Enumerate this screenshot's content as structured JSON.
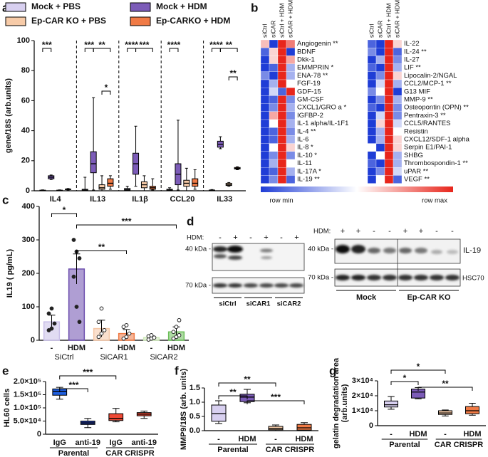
{
  "chart_data": [
    {
      "label": "a",
      "type": "box",
      "ylabel": "gene/18S (arb.units)",
      "categories": [
        "IL4",
        "IL13",
        "IL1β",
        "CCL20",
        "IL33"
      ],
      "ylim": [
        0,
        100
      ],
      "yticks": [
        0,
        20,
        40,
        60,
        80,
        100
      ],
      "series": [
        {
          "name": "Mock + PBS",
          "color": "#d8d0f0",
          "values": [
            [
              0,
              0,
              0.2,
              0.4,
              0.6
            ],
            [
              0,
              0.2,
              0.5,
              1,
              9
            ],
            [
              0,
              0.3,
              0.8,
              1.5,
              3
            ],
            [
              0,
              0.2,
              0.5,
              1,
              2
            ],
            [
              0,
              0.1,
              0.3,
              0.5,
              0.8
            ]
          ]
        },
        {
          "name": "Mock + HDM",
          "color": "#7c5cb8",
          "values": [
            [
              7.5,
              8,
              9,
              10,
              10.5
            ],
            [
              0.5,
              12,
              18,
              26,
              62
            ],
            [
              3,
              11,
              18,
              25,
              43
            ],
            [
              0.5,
              4,
              11,
              18,
              47
            ],
            [
              28,
              29,
              31,
              33,
              36
            ]
          ]
        },
        {
          "name": "Ep-CAR KO + PBS",
          "color": "#f7cba8",
          "values": [
            [
              0,
              0,
              0.2,
              0.4,
              0.6
            ],
            [
              0,
              1,
              2,
              4,
              10
            ],
            [
              0,
              2,
              4,
              6,
              10
            ],
            [
              0,
              3,
              5,
              7,
              15
            ],
            [
              3,
              3.5,
              4,
              5,
              5.5
            ]
          ]
        },
        {
          "name": "Ep-CARKO + HDM",
          "color": "#f07a45",
          "values": [
            [
              0.5,
              0.8,
              1,
              1.2,
              1.5
            ],
            [
              1,
              3,
              5,
              8,
              10
            ],
            [
              0.5,
              1,
              2,
              3,
              8
            ],
            [
              1,
              3,
              5,
              8,
              14
            ],
            [
              14,
              14.5,
              15,
              15.5,
              16
            ]
          ]
        }
      ],
      "annotations": [
        "***",
        "***",
        "**",
        "*",
        "****",
        "***",
        "****",
        "****",
        "**",
        "**"
      ]
    },
    {
      "label": "b",
      "type": "heatmap",
      "columns": [
        "siCtrl",
        "siCAR",
        "siCtrl + HDM",
        "siCAR + HDM"
      ],
      "blocks": [
        {
          "rows": [
            "Angiogenin **",
            "BDNF",
            "Dkk-1",
            "EMMPRIN *",
            "ENA-78 **",
            "FGF-19",
            "GDF-15",
            "GM-CSF",
            "CXCL1/GRO a *",
            "IGFBP-2",
            "IL-1 alpha/IL-1F1",
            "IL-4 **",
            "IL-6",
            "IL-8 *",
            "IL-10 *",
            "IL-11",
            "IL-17A *",
            "IL-19 **"
          ],
          "values": [
            [
              0.65,
              0,
              1,
              0.8
            ],
            [
              0.1,
              0.6,
              1,
              0
            ],
            [
              0,
              0.6,
              1,
              0.7
            ],
            [
              0,
              0.1,
              1,
              0.3
            ],
            [
              0.2,
              0,
              1,
              0.3
            ],
            [
              0,
              0.3,
              1,
              0.5
            ],
            [
              0,
              0.4,
              0.1,
              1
            ],
            [
              0,
              0.1,
              1,
              0.2
            ],
            [
              0,
              0.2,
              1,
              0.3
            ],
            [
              0,
              0.7,
              1,
              0.2
            ],
            [
              0,
              0.5,
              1,
              0.3
            ],
            [
              0,
              0.1,
              1,
              0.2
            ],
            [
              0,
              0.1,
              1,
              0.3
            ],
            [
              0,
              0.5,
              1,
              0.6
            ],
            [
              0,
              0.2,
              1,
              0.2
            ],
            [
              0,
              0.3,
              1,
              0.5
            ],
            [
              0,
              0.1,
              1,
              0.3
            ],
            [
              0,
              0.2,
              1,
              0.1
            ]
          ]
        },
        {
          "rows": [
            "IL-22",
            "IL-24 **",
            "IL-27",
            "LIF **",
            "Lipocalin-2/NGAL",
            "CCL2/MCP-1 **",
            "G13 MIF",
            "MMP-9 **",
            "Osteopontin (OPN) **",
            "Pentraxin-3 **",
            "CCL5/RANTES",
            "Resistin",
            "CXCL12/SDF-1 alpha",
            "Serpin E1/PAI-1",
            "SHBG",
            "Thrombospondin-1 **",
            "uPAR **",
            "VEGF **"
          ],
          "values": [
            [
              0.1,
              0,
              1,
              0.6
            ],
            [
              0.2,
              0,
              1,
              0.1
            ],
            [
              0,
              0.3,
              1,
              0.2
            ],
            [
              0.1,
              0,
              1,
              0.3
            ],
            [
              0,
              0.2,
              1,
              0.6
            ],
            [
              0,
              0.4,
              1,
              0.3
            ],
            [
              0.2,
              0.5,
              1,
              0
            ],
            [
              0,
              0.2,
              1,
              0.3
            ],
            [
              0.1,
              0,
              1,
              0.2
            ],
            [
              0,
              0.4,
              1,
              0.2
            ],
            [
              0,
              0.6,
              1,
              0.4
            ],
            [
              0,
              0.3,
              1,
              0.5
            ],
            [
              0,
              0.3,
              1,
              0.6
            ],
            [
              0.5,
              0,
              1,
              0.6
            ],
            [
              0,
              0.5,
              1,
              0.3
            ],
            [
              0.1,
              0,
              1,
              0.3
            ],
            [
              0,
              0.2,
              1,
              0.4
            ],
            [
              0,
              0.5,
              1,
              0.1
            ]
          ]
        }
      ],
      "legend": [
        "row min",
        "row max"
      ]
    },
    {
      "label": "c",
      "type": "bar",
      "ylabel": "IL19 ( pg/mL)",
      "categories": [
        "-",
        "HDM",
        "-",
        "HDM",
        "-",
        "HDM"
      ],
      "groups": [
        "SiCtrl",
        "SiCAR1",
        "SiCAR2"
      ],
      "colors": [
        "#c9bfe8",
        "#6d4fae",
        "#f5c6a5",
        "#ef7a45",
        "#cde8b8",
        "#6cbf5a"
      ],
      "values": [
        55,
        213,
        35,
        20,
        8,
        25
      ],
      "errors": [
        20,
        45,
        25,
        12,
        5,
        15
      ],
      "points": [
        [
          30,
          35,
          50,
          80,
          95
        ],
        [
          300,
          265,
          245,
          190,
          100,
          55
        ],
        [
          10,
          20,
          30,
          55,
          95
        ],
        [
          5,
          10,
          20,
          40,
          45
        ],
        [
          2,
          5,
          8,
          12,
          15
        ],
        [
          5,
          10,
          15,
          25,
          40,
          60
        ]
      ],
      "ylim": [
        0,
        400
      ],
      "yticks": [
        0,
        100,
        200,
        300,
        400
      ],
      "annotations": [
        "*",
        "***",
        "**"
      ]
    },
    {
      "label": "e",
      "type": "box",
      "ylabel": "HL60 cells",
      "categories": [
        "IgG",
        "anti-19",
        "IgG",
        "anti-19"
      ],
      "groups": [
        "Parental",
        "CAR CRISPR"
      ],
      "colors": [
        "#2060e0",
        "#203a9a",
        "#f04a35",
        "#f04a35"
      ],
      "hatch": [
        false,
        true,
        false,
        true
      ],
      "values": [
        [
          133000,
          148000,
          163000,
          172000,
          178000
        ],
        [
          25000,
          37000,
          43000,
          50000,
          60000
        ],
        [
          47000,
          52000,
          60000,
          78000,
          98000
        ],
        [
          60000,
          70000,
          76000,
          82000,
          88000
        ]
      ],
      "ylim": [
        0,
        200000
      ],
      "yticks": [
        0,
        {
          "value": 50000,
          "label": "5.0×10⁴"
        },
        {
          "value": 100000,
          "label": "1.0×10⁵"
        },
        {
          "value": 150000,
          "label": "1.5×10⁵"
        },
        {
          "value": 200000,
          "label": "2.0×10⁵"
        }
      ],
      "annotations": [
        "***",
        "***"
      ]
    },
    {
      "label": "f",
      "type": "box",
      "ylabel": "MMP9/18S (arb. units)",
      "categories": [
        "-",
        "HDM",
        "-",
        "HDM"
      ],
      "groups": [
        "Parental",
        "CAR CRISPR"
      ],
      "colors": [
        "#d8d0f0",
        "#7c5cb8",
        "#f7cba8",
        "#f07a45"
      ],
      "hatch": [
        false,
        false,
        false,
        false
      ],
      "values": [
        [
          0.25,
          0.33,
          0.6,
          0.9,
          1.05
        ],
        [
          0.98,
          1.02,
          1.18,
          1.28,
          1.45
        ],
        [
          0,
          0.03,
          0.08,
          0.15,
          0.2
        ],
        [
          0,
          0.02,
          0.1,
          0.22,
          0.28
        ]
      ],
      "ylim": [
        0,
        1.5
      ],
      "yticks": [
        {
          "value": 0,
          "label": "0.0"
        },
        0.5,
        {
          "value": 1,
          "label": "1.0"
        },
        1.5
      ],
      "annotations": [
        "**",
        "**",
        "***"
      ]
    },
    {
      "label": "g",
      "type": "box",
      "ylabel": "gelatin degradation area",
      "ylabel2": "(arb.units)",
      "categories": [
        "-",
        "HDM",
        "-",
        "HDM"
      ],
      "groups": [
        "Parental",
        "CAR CRISPR"
      ],
      "colors": [
        "#d8d0f0",
        "#7c5cb8",
        "#f7cba8",
        "#f07a45"
      ],
      "hatch": [
        false,
        false,
        false,
        false
      ],
      "values": [
        [
          11000,
          12500,
          14000,
          16500,
          19500
        ],
        [
          18000,
          18500,
          22500,
          24500,
          25500
        ],
        [
          6500,
          7500,
          8500,
          10000,
          10500
        ],
        [
          7000,
          8000,
          10000,
          12800,
          15000
        ]
      ],
      "ylim": [
        0,
        30000
      ],
      "yticks": [
        0,
        {
          "value": 10000,
          "label": "1×10⁴"
        },
        {
          "value": 20000,
          "label": "2×10⁴"
        },
        {
          "value": 30000,
          "label": "3×10⁴"
        }
      ],
      "annotations": [
        "*",
        "*",
        "**"
      ]
    }
  ],
  "blot": {
    "label": "d",
    "left": {
      "hdm_label": "HDM:",
      "hdm": [
        "-",
        "+",
        "-",
        "+",
        "-",
        "+"
      ],
      "markers": [
        "40 kDa -",
        "70 kDa -"
      ],
      "groups": [
        "siCtrl",
        "siCAR1",
        "siCAR2"
      ]
    },
    "right": {
      "hdm_label": "HDM:",
      "hdm": [
        "+",
        "+",
        "-",
        "-",
        "+",
        "+",
        "-",
        "-"
      ],
      "markers": [
        "40 kDa -",
        "70 kDa -"
      ],
      "groups": [
        "Mock",
        "Ep-CAR KO"
      ],
      "bands": [
        "IL-19",
        "HSC70"
      ]
    }
  }
}
